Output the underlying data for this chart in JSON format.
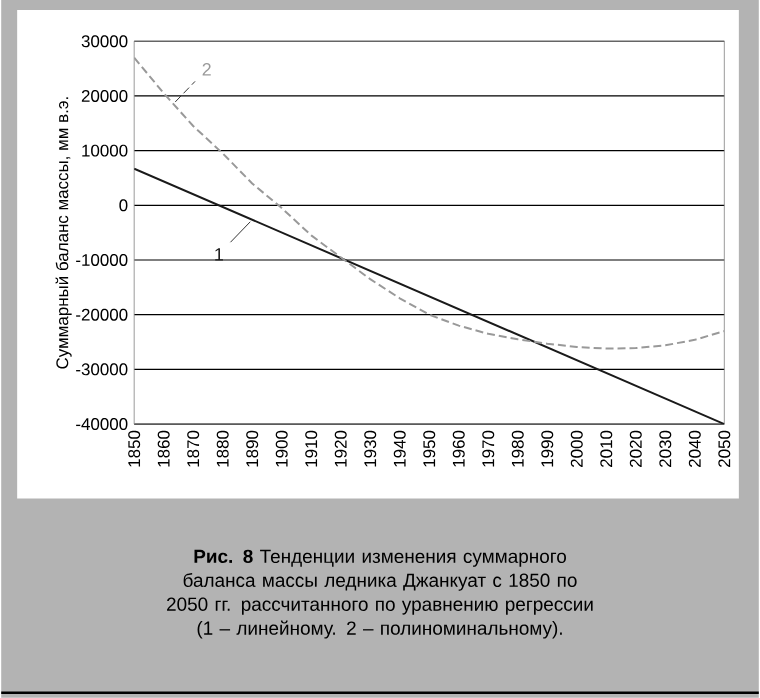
{
  "chart_data": {
    "type": "line",
    "title": "**Рис. 8**  Тенденции изменения суммарного баланса массы ледника Джанкуат с 1850 по 2050 гг. рассчитанного по уравнению регрессии (1 – линейному. 2 – полиноминальному).",
    "ylabel": "Суммарный баланс массы, мм в.э.",
    "xlim": [
      1850,
      2050
    ],
    "xticks": [
      1850,
      1860,
      1870,
      1880,
      1890,
      1900,
      1910,
      1920,
      1930,
      1940,
      1950,
      1960,
      1970,
      1980,
      1990,
      2000,
      2010,
      2020,
      2030,
      2040,
      2050
    ],
    "ylim": [
      -40000,
      30000
    ],
    "yticks": [
      -40000,
      -30000,
      -20000,
      -10000,
      0,
      10000,
      20000,
      30000
    ],
    "grid": "y",
    "series": [
      {
        "name": "1",
        "color": "#1a1a1a",
        "line_style": "solid",
        "x": [
          1850,
          2050
        ],
        "values": [
          6700,
          -40000
        ]
      },
      {
        "name": "2",
        "color": "#999999",
        "line_style": "dashed",
        "x": [
          1850,
          1860,
          1870,
          1880,
          1890,
          1900,
          1910,
          1920,
          1930,
          1940,
          1950,
          1960,
          1970,
          1980,
          1990,
          2000,
          2010,
          2020,
          2030,
          2040,
          2050
        ],
        "values": [
          27000,
          20500,
          14500,
          9500,
          4000,
          -500,
          -5500,
          -9500,
          -13500,
          -17000,
          -20000,
          -22000,
          -23500,
          -24500,
          -25300,
          -25900,
          -26200,
          -26100,
          -25600,
          -24600,
          -23000
        ]
      }
    ]
  }
}
